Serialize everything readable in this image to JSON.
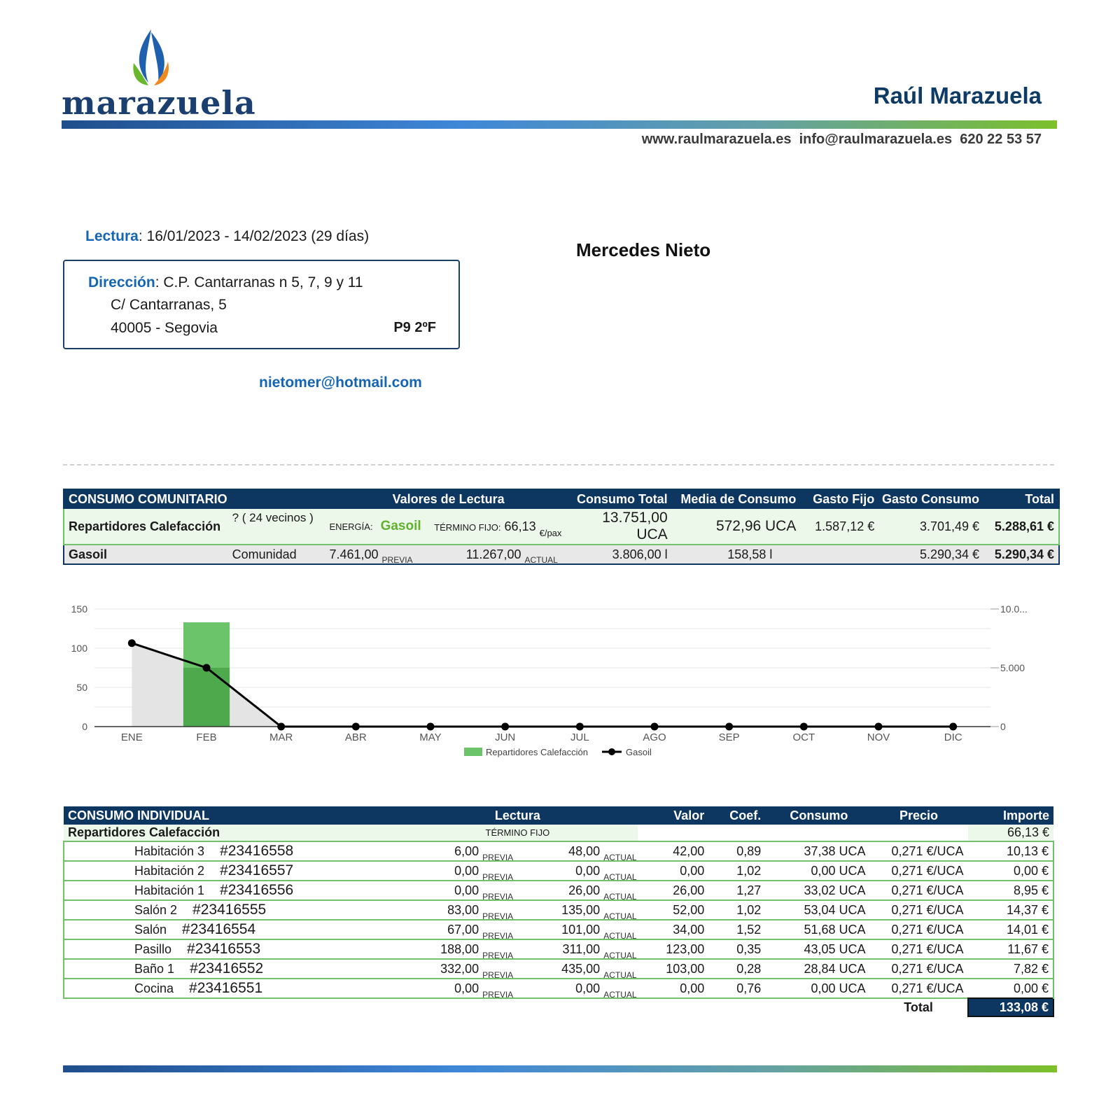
{
  "header": {
    "logo_text": "marazuela",
    "company_name": "Raúl Marazuela",
    "website": "www.raulmarazuela.es",
    "email": "info@raulmarazuela.es",
    "phone": "620 22 53 57"
  },
  "reading": {
    "label": "Lectura",
    "period": "16/01/2023 - 14/02/2023 (29 días)"
  },
  "customer": {
    "name": "Mercedes Nieto",
    "address_label": "Dirección",
    "address_line1": "C.P. Cantarranas n 5, 7, 9 y 11",
    "address_line2": "C/ Cantarranas, 5",
    "address_line3": "40005 - Segovia",
    "unit": "P9 2ºF",
    "email": "nietomer@hotmail.com"
  },
  "community": {
    "headers": [
      "CONSUMO COMUNITARIO",
      "Valores de Lectura",
      "Consumo Total",
      "Media de Consumo",
      "Gasto Fijo",
      "Gasto Consumo",
      "Total"
    ],
    "row1": {
      "name": "Repartidores Calefacción",
      "neighbors": "? ( 24 vecinos )",
      "energy_label": "ENERGÍA:",
      "energy": "Gasoil",
      "fixed_label": "TÉRMINO FIJO:",
      "fixed_value": "66,13",
      "fixed_unit": "€/pax",
      "consumo_total": "13.751,00 UCA",
      "media": "572,96 UCA",
      "gasto_fijo": "1.587,12 €",
      "gasto_consumo": "3.701,49 €",
      "total": "5.288,61 €"
    },
    "row2": {
      "name": "Gasoil",
      "scope": "Comunidad",
      "previa": "7.461,00",
      "previa_label": "PREVIA",
      "actual": "11.267,00",
      "actual_label": "ACTUAL",
      "consumo_total": "3.806,00 l",
      "media": "158,58 l",
      "gasto_consumo": "5.290,34 €",
      "total": "5.290,34 €"
    }
  },
  "chart_data": {
    "type": "bar",
    "categories": [
      "ENE",
      "FEB",
      "MAR",
      "ABR",
      "MAY",
      "JUN",
      "JUL",
      "AGO",
      "SEP",
      "OCT",
      "NOV",
      "DIC"
    ],
    "series": [
      {
        "name": "Repartidores Calefacción",
        "type": "bar",
        "axis": "left",
        "values": [
          0,
          133,
          0,
          0,
          0,
          0,
          0,
          0,
          0,
          0,
          0,
          0
        ]
      },
      {
        "name": "Gasoil",
        "type": "line",
        "axis": "right",
        "values": [
          7100,
          5000,
          0,
          0,
          0,
          0,
          0,
          0,
          0,
          0,
          0,
          0
        ]
      }
    ],
    "ylim_left": [
      0,
      150
    ],
    "yticks_left": [
      "150",
      "100",
      "50",
      "0"
    ],
    "ylim_right": [
      0,
      10000
    ],
    "yticks_right": [
      "10.0...",
      "5.000",
      "0"
    ],
    "grid": true,
    "legend": "bottom-center",
    "colors": {
      "bar": "#6cc46a",
      "bar_dark": "#4ea84c",
      "line": "#000000",
      "area": "#e4e4e4"
    }
  },
  "individual": {
    "headers": [
      "CONSUMO INDIVIDUAL",
      "Lectura",
      "Valor",
      "Coef.",
      "Consumo",
      "Precio",
      "Importe"
    ],
    "group_name": "Repartidores Calefacción",
    "group_fixed_label": "TÉRMINO FIJO",
    "group_fixed_value": "66,13 €",
    "previa_label": "PREVIA",
    "actual_label": "ACTUAL",
    "rows": [
      {
        "room": "Habitación 3",
        "id": "#23416558",
        "previa": "6,00",
        "actual": "48,00",
        "valor": "42,00",
        "coef": "0,89",
        "consumo": "37,38 UCA",
        "precio": "0,271 €/UCA",
        "importe": "10,13 €"
      },
      {
        "room": "Habitación 2",
        "id": "#23416557",
        "previa": "0,00",
        "actual": "0,00",
        "valor": "0,00",
        "coef": "1,02",
        "consumo": "0,00 UCA",
        "precio": "0,271 €/UCA",
        "importe": "0,00 €"
      },
      {
        "room": "Habitación 1",
        "id": "#23416556",
        "previa": "0,00",
        "actual": "26,00",
        "valor": "26,00",
        "coef": "1,27",
        "consumo": "33,02 UCA",
        "precio": "0,271 €/UCA",
        "importe": "8,95 €"
      },
      {
        "room": "Salón 2",
        "id": "#23416555",
        "previa": "83,00",
        "actual": "135,00",
        "valor": "52,00",
        "coef": "1,02",
        "consumo": "53,04 UCA",
        "precio": "0,271 €/UCA",
        "importe": "14,37 €"
      },
      {
        "room": "Salón",
        "id": "#23416554",
        "previa": "67,00",
        "actual": "101,00",
        "valor": "34,00",
        "coef": "1,52",
        "consumo": "51,68 UCA",
        "precio": "0,271 €/UCA",
        "importe": "14,01 €"
      },
      {
        "room": "Pasillo",
        "id": "#23416553",
        "previa": "188,00",
        "actual": "311,00",
        "valor": "123,00",
        "coef": "0,35",
        "consumo": "43,05 UCA",
        "precio": "0,271 €/UCA",
        "importe": "11,67 €"
      },
      {
        "room": "Baño 1",
        "id": "#23416552",
        "previa": "332,00",
        "actual": "435,00",
        "valor": "103,00",
        "coef": "0,28",
        "consumo": "28,84 UCA",
        "precio": "0,271 €/UCA",
        "importe": "7,82 €"
      },
      {
        "room": "Cocina",
        "id": "#23416551",
        "previa": "0,00",
        "actual": "0,00",
        "valor": "0,00",
        "coef": "0,76",
        "consumo": "0,00 UCA",
        "precio": "0,271 €/UCA",
        "importe": "0,00 €"
      }
    ],
    "total_label": "Total",
    "total_value": "133,08 €"
  }
}
